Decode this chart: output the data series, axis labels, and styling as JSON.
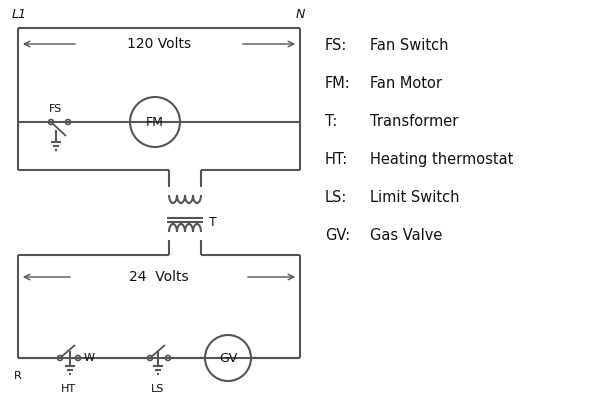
{
  "background_color": "#ffffff",
  "line_color": "#555555",
  "text_color": "#111111",
  "legend_items": [
    [
      "FS:",
      "Fan Switch"
    ],
    [
      "FM:",
      "Fan Motor"
    ],
    [
      "T:",
      "Transformer"
    ],
    [
      "HT:",
      "Heating thermostat"
    ],
    [
      "LS:",
      "Limit Switch"
    ],
    [
      "GV:",
      "Gas Valve"
    ]
  ],
  "volts_120": "120 Volts",
  "volts_24": "24  Volts",
  "L1": "L1",
  "N": "N"
}
